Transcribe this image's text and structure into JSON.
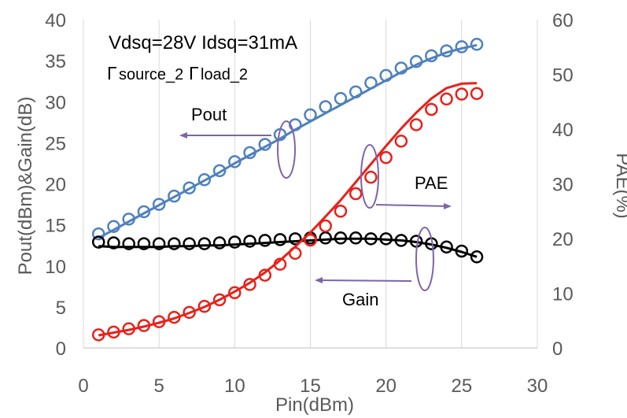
{
  "chart_data": {
    "type": "line",
    "title": "",
    "annotations": {
      "condition": "Vdsq=28V Idsq=31mA",
      "gamma_source": "source_2",
      "gamma_load": "load_2",
      "gamma_symbol": "Γ",
      "labels": {
        "pout": "Pout",
        "pae": "PAE",
        "gain": "Gain"
      }
    },
    "xlabel": "Pin(dBm)",
    "ylabel_left": "Pout(dBm)&Gain(dB)",
    "ylabel_right": "PAE(%)",
    "xlim": [
      0,
      30
    ],
    "ylim_left": [
      0,
      40
    ],
    "ylim_right": [
      0,
      60
    ],
    "x_ticks": [
      "0",
      "5",
      "10",
      "15",
      "20",
      "25",
      "30"
    ],
    "y_left_ticks": [
      "0",
      "5",
      "10",
      "15",
      "20",
      "25",
      "30",
      "35",
      "40"
    ],
    "y_right_ticks": [
      "0",
      "10",
      "20",
      "30",
      "40",
      "50",
      "60"
    ],
    "grid": "vertical",
    "series": [
      {
        "name": "Pout",
        "axis": "left",
        "color": "#4f81bd",
        "measured": {
          "x": [
            1,
            2,
            3,
            4,
            5,
            6,
            7,
            8,
            9,
            10,
            11,
            12,
            13,
            14,
            15,
            16,
            17,
            18,
            19,
            20,
            21,
            22,
            23,
            24,
            25,
            26
          ],
          "y": [
            13.9,
            14.8,
            15.7,
            16.6,
            17.5,
            18.5,
            19.5,
            20.5,
            21.6,
            22.7,
            23.8,
            24.8,
            26.0,
            27.2,
            28.4,
            29.4,
            30.4,
            31.2,
            32.3,
            33.2,
            34.1,
            34.9,
            35.6,
            36.2,
            36.7,
            37.0
          ]
        },
        "simulated": {
          "x": [
            1,
            2,
            3,
            4,
            5,
            6,
            7,
            8,
            9,
            10,
            11,
            12,
            13,
            14,
            15,
            16,
            17,
            18,
            19,
            20,
            21,
            22,
            23,
            24,
            25,
            26
          ],
          "y": [
            13.4,
            14.4,
            15.4,
            16.4,
            17.4,
            18.4,
            19.4,
            20.4,
            21.4,
            22.5,
            23.5,
            24.5,
            25.5,
            26.6,
            27.6,
            28.6,
            29.6,
            30.6,
            31.6,
            32.6,
            33.6,
            34.5,
            35.3,
            36.0,
            36.5,
            36.9
          ]
        }
      },
      {
        "name": "Gain",
        "axis": "left",
        "color": "#000000",
        "measured": {
          "x": [
            1,
            2,
            3,
            4,
            5,
            6,
            7,
            8,
            9,
            10,
            11,
            12,
            13,
            14,
            15,
            16,
            17,
            18,
            19,
            20,
            21,
            22,
            23,
            24,
            25,
            26
          ],
          "y": [
            12.9,
            12.8,
            12.7,
            12.7,
            12.7,
            12.7,
            12.7,
            12.7,
            12.8,
            12.9,
            13.0,
            13.1,
            13.2,
            13.3,
            13.4,
            13.4,
            13.4,
            13.4,
            13.3,
            13.3,
            13.1,
            13.0,
            12.7,
            12.3,
            11.8,
            11.1
          ]
        },
        "simulated": {
          "x": [
            1,
            2,
            3,
            4,
            5,
            6,
            7,
            8,
            9,
            10,
            11,
            12,
            13,
            14,
            15,
            16,
            17,
            18,
            19,
            20,
            21,
            22,
            23,
            24,
            25,
            26
          ],
          "y": [
            12.4,
            12.3,
            12.3,
            12.3,
            12.3,
            12.4,
            12.4,
            12.5,
            12.5,
            12.6,
            12.7,
            12.8,
            12.9,
            13.0,
            13.1,
            13.2,
            13.3,
            13.3,
            13.3,
            13.2,
            13.1,
            12.9,
            12.6,
            12.2,
            11.7,
            11.1
          ]
        }
      },
      {
        "name": "PAE",
        "axis": "right",
        "color": "#e8211a",
        "measured": {
          "x": [
            1,
            2,
            3,
            4,
            5,
            6,
            7,
            8,
            9,
            10,
            11,
            12,
            13,
            14,
            15,
            16,
            17,
            18,
            19,
            20,
            21,
            22,
            23,
            24,
            25,
            26
          ],
          "y": [
            2.4,
            2.9,
            3.5,
            4.1,
            4.8,
            5.6,
            6.5,
            7.6,
            8.8,
            10.1,
            11.6,
            13.3,
            15.3,
            17.3,
            19.7,
            22.3,
            25.0,
            28.2,
            31.2,
            34.8,
            37.8,
            40.8,
            43.6,
            45.5,
            46.4,
            46.5
          ]
        },
        "simulated": {
          "x": [
            1,
            2,
            3,
            4,
            5,
            6,
            7,
            8,
            9,
            10,
            11,
            12,
            13,
            14,
            15,
            16,
            17,
            18,
            19,
            20,
            21,
            22,
            23,
            24,
            25,
            26
          ],
          "y": [
            2.3,
            2.8,
            3.3,
            3.9,
            4.6,
            5.4,
            6.4,
            7.5,
            8.8,
            10.3,
            11.9,
            13.8,
            16.0,
            18.5,
            21.1,
            24.0,
            27.0,
            30.3,
            33.6,
            36.9,
            40.1,
            43.0,
            45.6,
            47.5,
            48.3,
            48.4
          ]
        }
      }
    ]
  }
}
